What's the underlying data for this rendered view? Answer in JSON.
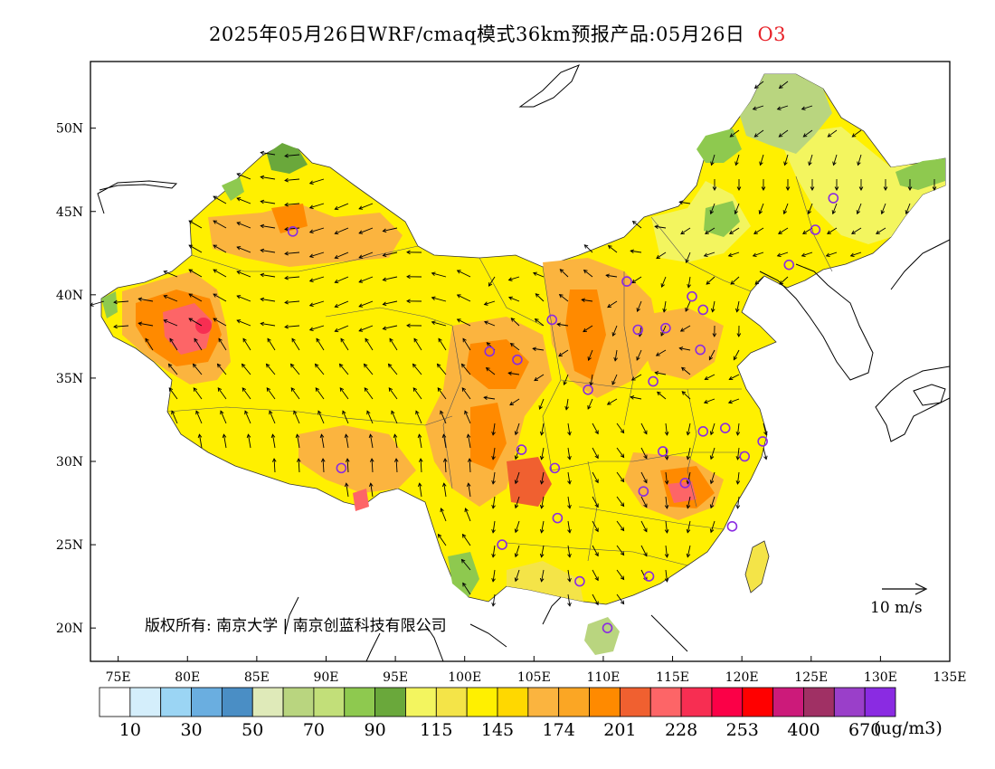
{
  "title": {
    "main": "2025年05月26日WRF/cmaq模式36km预报产品:05月26日",
    "pollutant": "O3"
  },
  "map": {
    "lon_range": [
      73,
      135
    ],
    "lat_range": [
      18,
      54
    ],
    "lat_ticks": [
      "20N",
      "25N",
      "30N",
      "35N",
      "40N",
      "45N",
      "50N"
    ],
    "lon_ticks": [
      "75E",
      "80E",
      "85E",
      "90E",
      "95E",
      "100E",
      "105E",
      "110E",
      "115E",
      "120E",
      "125E",
      "130E",
      "135E"
    ],
    "copyright": "版权所有: 南京大学 | 南京创蓝科技有限公司",
    "wind_scale_label": "10 m/s"
  },
  "legend": {
    "colors": [
      "#ffffff",
      "#d4eefb",
      "#9bd5f4",
      "#6aaee0",
      "#4a8ec5",
      "#dfeab9",
      "#b9d57f",
      "#c2df79",
      "#8ec94f",
      "#6aa83b",
      "#f3f55f",
      "#f4e448",
      "#fff000",
      "#ffd800",
      "#fbb43f",
      "#fba624",
      "#ff8a00",
      "#f06030",
      "#fd6567",
      "#f72e52",
      "#fb0047",
      "#ff0000",
      "#cc1a7a",
      "#a03064",
      "#9a3fc9",
      "#8a2be2"
    ],
    "labels": [
      "10",
      "30",
      "50",
      "70",
      "90",
      "115",
      "145",
      "174",
      "201",
      "228",
      "253",
      "400",
      "670"
    ],
    "unit": "(ug/m3)"
  },
  "stations": [
    {
      "lon": 87.6,
      "lat": 43.8
    },
    {
      "lon": 101.8,
      "lat": 36.6
    },
    {
      "lon": 103.8,
      "lat": 36.1
    },
    {
      "lon": 106.3,
      "lat": 38.5
    },
    {
      "lon": 111.7,
      "lat": 40.8
    },
    {
      "lon": 112.5,
      "lat": 37.9
    },
    {
      "lon": 114.5,
      "lat": 38.0
    },
    {
      "lon": 116.4,
      "lat": 39.9
    },
    {
      "lon": 117.2,
      "lat": 39.1
    },
    {
      "lon": 117.0,
      "lat": 36.7
    },
    {
      "lon": 113.6,
      "lat": 34.8
    },
    {
      "lon": 108.9,
      "lat": 34.3
    },
    {
      "lon": 104.1,
      "lat": 30.7
    },
    {
      "lon": 106.5,
      "lat": 29.6
    },
    {
      "lon": 114.3,
      "lat": 30.6
    },
    {
      "lon": 117.2,
      "lat": 31.8
    },
    {
      "lon": 118.8,
      "lat": 32.0
    },
    {
      "lon": 121.5,
      "lat": 31.2
    },
    {
      "lon": 120.2,
      "lat": 30.3
    },
    {
      "lon": 112.9,
      "lat": 28.2
    },
    {
      "lon": 115.9,
      "lat": 28.7
    },
    {
      "lon": 119.3,
      "lat": 26.1
    },
    {
      "lon": 113.3,
      "lat": 23.1
    },
    {
      "lon": 108.3,
      "lat": 22.8
    },
    {
      "lon": 106.7,
      "lat": 26.6
    },
    {
      "lon": 102.7,
      "lat": 25.0
    },
    {
      "lon": 91.1,
      "lat": 29.6
    },
    {
      "lon": 110.3,
      "lat": 20.0
    },
    {
      "lon": 123.4,
      "lat": 41.8
    },
    {
      "lon": 125.3,
      "lat": 43.9
    },
    {
      "lon": 126.6,
      "lat": 45.8
    }
  ]
}
